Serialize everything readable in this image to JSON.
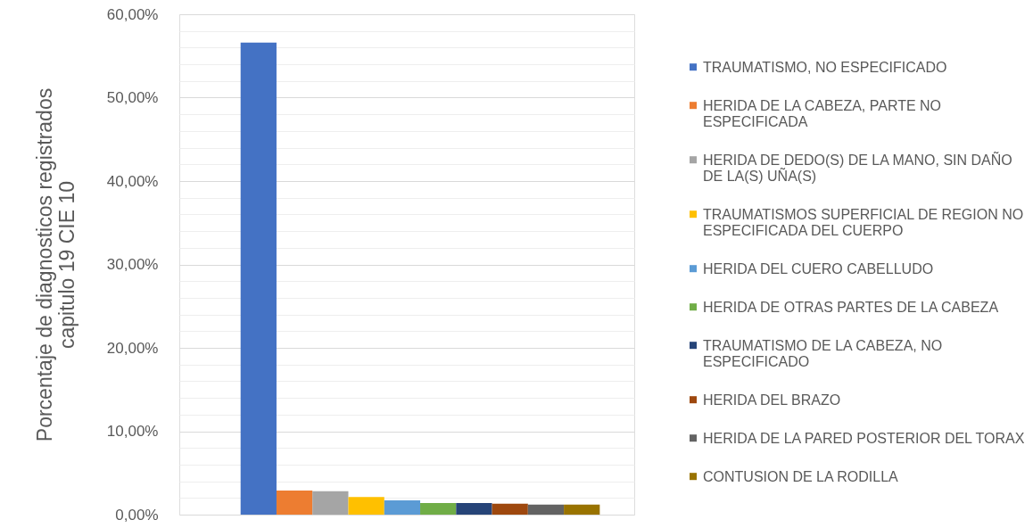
{
  "chart_data": {
    "type": "bar",
    "ylabel": "Porcentaje de diagnosticos registrados capitulo 19 CIE 10",
    "categories": [
      null
    ],
    "series": [
      {
        "name": "TRAUMATISMO, NO ESPECIFICADO",
        "color": "#4472c4",
        "values": [
          56.6
        ]
      },
      {
        "name": "HERIDA DE LA CABEZA, PARTE NO ESPECIFICADA",
        "color": "#ed7d31",
        "values": [
          2.9
        ]
      },
      {
        "name": "HERIDA DE DEDO(S) DE LA MANO, SIN DAÑO DE LA(S) UÑA(S)",
        "color": "#a5a5a5",
        "values": [
          2.8
        ]
      },
      {
        "name": "TRAUMATISMOS SUPERFICIAL DE REGION NO ESPECIFICADA DEL CUERPO",
        "color": "#ffc000",
        "values": [
          2.1
        ]
      },
      {
        "name": "HERIDA DEL CUERO CABELLUDO",
        "color": "#5b9bd5",
        "values": [
          1.7
        ]
      },
      {
        "name": "HERIDA DE OTRAS PARTES DE LA CABEZA",
        "color": "#70ad47",
        "values": [
          1.4
        ]
      },
      {
        "name": "TRAUMATISMO DE LA CABEZA, NO ESPECIFICADO",
        "color": "#264478",
        "values": [
          1.4
        ]
      },
      {
        "name": "HERIDA DEL BRAZO",
        "color": "#9e480e",
        "values": [
          1.3
        ]
      },
      {
        "name": "HERIDA DE LA PARED POSTERIOR DEL TORAX",
        "color": "#636363",
        "values": [
          1.2
        ]
      },
      {
        "name": "CONTUSION DE LA RODILLA",
        "color": "#997300",
        "values": [
          1.2
        ]
      }
    ],
    "ylim": [
      0,
      60
    ],
    "yticks": [
      {
        "value": 0,
        "label": "0,00%"
      },
      {
        "value": 2,
        "label": null
      },
      {
        "value": 4,
        "label": null
      },
      {
        "value": 6,
        "label": null
      },
      {
        "value": 8,
        "label": null
      },
      {
        "value": 10,
        "label": "10,00%"
      },
      {
        "value": 12,
        "label": null
      },
      {
        "value": 14,
        "label": null
      },
      {
        "value": 16,
        "label": null
      },
      {
        "value": 18,
        "label": null
      },
      {
        "value": 20,
        "label": "20,00%"
      },
      {
        "value": 22,
        "label": null
      },
      {
        "value": 24,
        "label": null
      },
      {
        "value": 26,
        "label": null
      },
      {
        "value": 28,
        "label": null
      },
      {
        "value": 30,
        "label": "30,00%"
      },
      {
        "value": 32,
        "label": null
      },
      {
        "value": 34,
        "label": null
      },
      {
        "value": 36,
        "label": null
      },
      {
        "value": 38,
        "label": null
      },
      {
        "value": 40,
        "label": "40,00%"
      },
      {
        "value": 42,
        "label": null
      },
      {
        "value": 44,
        "label": null
      },
      {
        "value": 46,
        "label": null
      },
      {
        "value": 48,
        "label": null
      },
      {
        "value": 50,
        "label": "50,00%"
      },
      {
        "value": 52,
        "label": null
      },
      {
        "value": 54,
        "label": null
      },
      {
        "value": 56,
        "label": null
      },
      {
        "value": 58,
        "label": null
      },
      {
        "value": 60,
        "label": "60,00%"
      }
    ],
    "grid": "y",
    "legend": "right",
    "tick_labels": "y"
  }
}
